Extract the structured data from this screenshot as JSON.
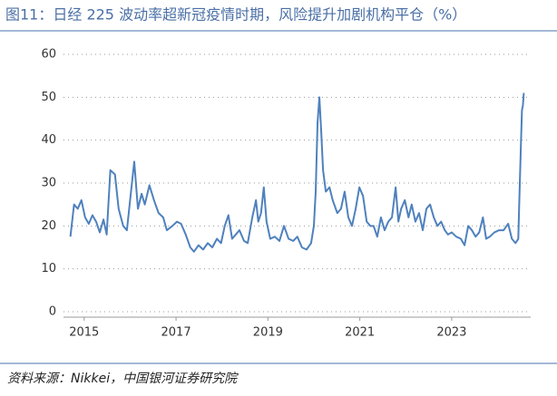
{
  "chart_data": {
    "type": "line",
    "title": "图11：日经 225 波动率超新冠疫情时期，风险提升加剧机构平仓（%）",
    "source": "资料来源：Nikkei，中国银河证券研究院",
    "grid": true,
    "xlim": [
      2014.55,
      2024.72
    ],
    "xticks": [
      2015,
      2017,
      2019,
      2021,
      2023
    ],
    "ylim": [
      0,
      60
    ],
    "yticks": [
      0,
      10,
      20,
      30,
      40,
      50,
      60
    ],
    "x": [
      2014.7,
      2014.78,
      2014.86,
      2014.94,
      2015.02,
      2015.1,
      2015.18,
      2015.26,
      2015.34,
      2015.42,
      2015.49,
      2015.57,
      2015.67,
      2015.75,
      2015.85,
      2015.93,
      2016.01,
      2016.09,
      2016.17,
      2016.25,
      2016.32,
      2016.42,
      2016.52,
      2016.62,
      2016.72,
      2016.8,
      2016.92,
      2017.02,
      2017.11,
      2017.21,
      2017.31,
      2017.39,
      2017.49,
      2017.59,
      2017.69,
      2017.79,
      2017.89,
      2017.98,
      2018.06,
      2018.14,
      2018.22,
      2018.3,
      2018.38,
      2018.48,
      2018.56,
      2018.66,
      2018.74,
      2018.79,
      2018.85,
      2018.91,
      2018.97,
      2019.05,
      2019.15,
      2019.25,
      2019.35,
      2019.45,
      2019.55,
      2019.64,
      2019.74,
      2019.84,
      2019.94,
      2020.0,
      2020.04,
      2020.08,
      2020.12,
      2020.16,
      2020.2,
      2020.26,
      2020.34,
      2020.41,
      2020.51,
      2020.59,
      2020.67,
      2020.75,
      2020.83,
      2020.91,
      2020.99,
      2021.07,
      2021.15,
      2021.23,
      2021.3,
      2021.38,
      2021.46,
      2021.54,
      2021.62,
      2021.7,
      2021.78,
      2021.84,
      2021.9,
      2021.98,
      2022.06,
      2022.13,
      2022.21,
      2022.29,
      2022.37,
      2022.45,
      2022.53,
      2022.61,
      2022.69,
      2022.77,
      2022.85,
      2022.92,
      2023.0,
      2023.1,
      2023.2,
      2023.28,
      2023.36,
      2023.44,
      2023.52,
      2023.6,
      2023.68,
      2023.75,
      2023.83,
      2023.93,
      2024.03,
      2024.13,
      2024.23,
      2024.31,
      2024.39,
      2024.45,
      2024.47,
      2024.51,
      2024.53,
      2024.55,
      2024.57
    ],
    "series": [
      {
        "color": "#4f81bd",
        "values": [
          17.5,
          25,
          24,
          26,
          22,
          20.5,
          22.5,
          21,
          18.5,
          21.5,
          18,
          33,
          32,
          24,
          20,
          19,
          27,
          35,
          24,
          27.5,
          25,
          29.5,
          26,
          23,
          22,
          19,
          20,
          21,
          20.5,
          18,
          15,
          14,
          15.5,
          14.5,
          16,
          15,
          17,
          16,
          20,
          22.5,
          17,
          18,
          19,
          16.5,
          16,
          22,
          26,
          21,
          23,
          29,
          21,
          17,
          17.5,
          16.5,
          20,
          17,
          16.5,
          17.5,
          15,
          14.5,
          16,
          20,
          28,
          44,
          50,
          42,
          33,
          28,
          29,
          26,
          23,
          24,
          28,
          22,
          20,
          24,
          29,
          27,
          21,
          20,
          20,
          17.5,
          22,
          19,
          21,
          22,
          29,
          21,
          24,
          26,
          22,
          25,
          21,
          23,
          19,
          24,
          25,
          22,
          20,
          21,
          19,
          18,
          18.5,
          17.5,
          17,
          15.5,
          20,
          19,
          17.5,
          18.5,
          22,
          17,
          17.5,
          18.5,
          19,
          19,
          20.5,
          17,
          16,
          17,
          25,
          40,
          47,
          48,
          51
        ]
      }
    ]
  }
}
